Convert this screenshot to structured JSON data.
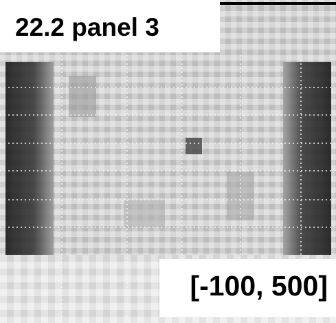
{
  "labels": {
    "title": "22.2 panel 3",
    "range": "[-100, 500]"
  }
}
